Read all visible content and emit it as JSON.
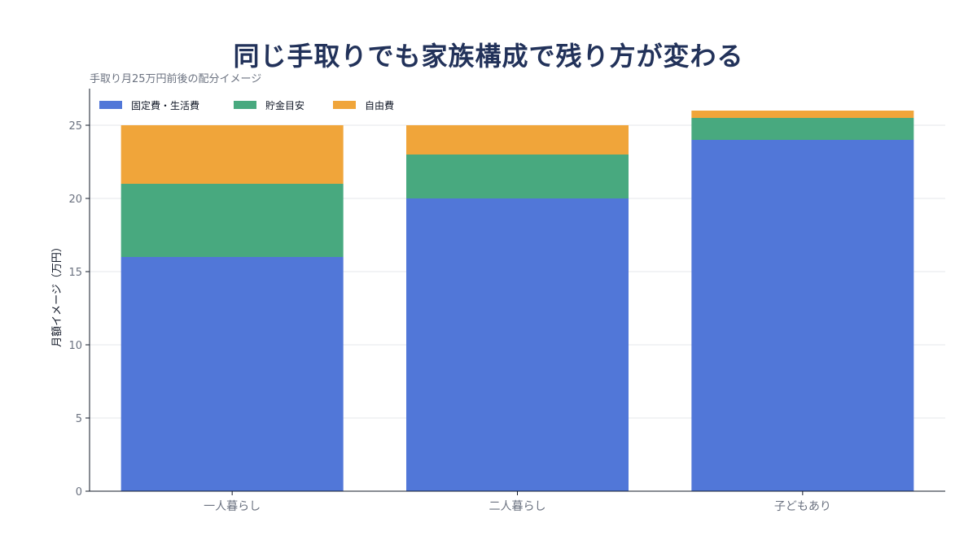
{
  "chart_data": {
    "type": "bar",
    "stacked": true,
    "title": "同じ手取りでも家族構成で残り方が変わる",
    "subtitle": "手取り月25万円前後の配分イメージ",
    "ylabel": "月額イメージ（万円）",
    "categories": [
      "一人暮らし",
      "二人暮らし",
      "子どもあり"
    ],
    "series": [
      {
        "name": "固定費・生活費",
        "color": "#5177d8",
        "values": [
          16,
          20,
          24
        ]
      },
      {
        "name": "貯金目安",
        "color": "#48a97f",
        "values": [
          5,
          3,
          1.5
        ]
      },
      {
        "name": "自由費",
        "color": "#f0a53a",
        "values": [
          4,
          2,
          0.5
        ]
      }
    ],
    "ylim": [
      0,
      27.5
    ],
    "yticks": [
      0,
      5,
      10,
      15,
      20,
      25
    ],
    "grid": true,
    "legend_position": "top-left"
  }
}
